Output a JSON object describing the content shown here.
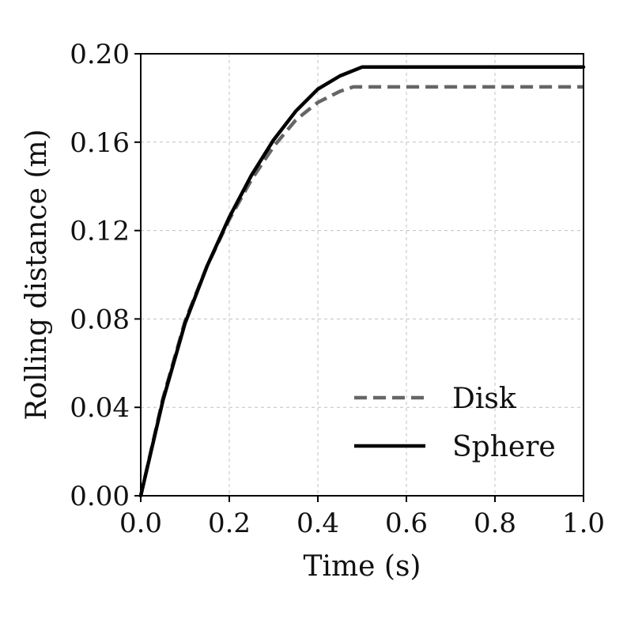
{
  "colors": {
    "disk": "#666666",
    "sphere": "#000000",
    "grid": "#c0c0c0",
    "axis": "#000000"
  },
  "chart_data": {
    "type": "line",
    "title": "",
    "xlabel": "Time (s)",
    "ylabel": "Rolling distance (m)",
    "xlim": [
      0.0,
      1.0
    ],
    "ylim": [
      0.0,
      0.2
    ],
    "xticks": [
      0.0,
      0.2,
      0.4,
      0.6,
      0.8,
      1.0
    ],
    "xtick_labels": [
      "0.0",
      "0.2",
      "0.4",
      "0.6",
      "0.8",
      "1.0"
    ],
    "yticks": [
      0.0,
      0.04,
      0.08,
      0.12,
      0.16,
      0.2
    ],
    "ytick_labels": [
      "0.00",
      "0.04",
      "0.08",
      "0.12",
      "0.16",
      "0.20"
    ],
    "grid": true,
    "legend_position": "lower-right",
    "series": [
      {
        "name": "Disk",
        "style": "dashed",
        "color": "#666666",
        "x": [
          0.0,
          0.05,
          0.1,
          0.15,
          0.2,
          0.25,
          0.3,
          0.35,
          0.4,
          0.45,
          0.48,
          0.5,
          0.6,
          0.7,
          0.8,
          0.9,
          1.0
        ],
        "y": [
          0.0,
          0.044,
          0.079,
          0.104,
          0.125,
          0.143,
          0.158,
          0.17,
          0.178,
          0.183,
          0.185,
          0.185,
          0.185,
          0.185,
          0.185,
          0.185,
          0.185
        ]
      },
      {
        "name": "Sphere",
        "style": "solid",
        "color": "#000000",
        "x": [
          0.0,
          0.05,
          0.1,
          0.15,
          0.2,
          0.25,
          0.3,
          0.35,
          0.4,
          0.45,
          0.5,
          0.6,
          0.7,
          0.8,
          0.9,
          1.0
        ],
        "y": [
          0.0,
          0.043,
          0.078,
          0.104,
          0.126,
          0.145,
          0.161,
          0.174,
          0.184,
          0.19,
          0.194,
          0.194,
          0.194,
          0.194,
          0.194,
          0.194
        ]
      }
    ]
  }
}
